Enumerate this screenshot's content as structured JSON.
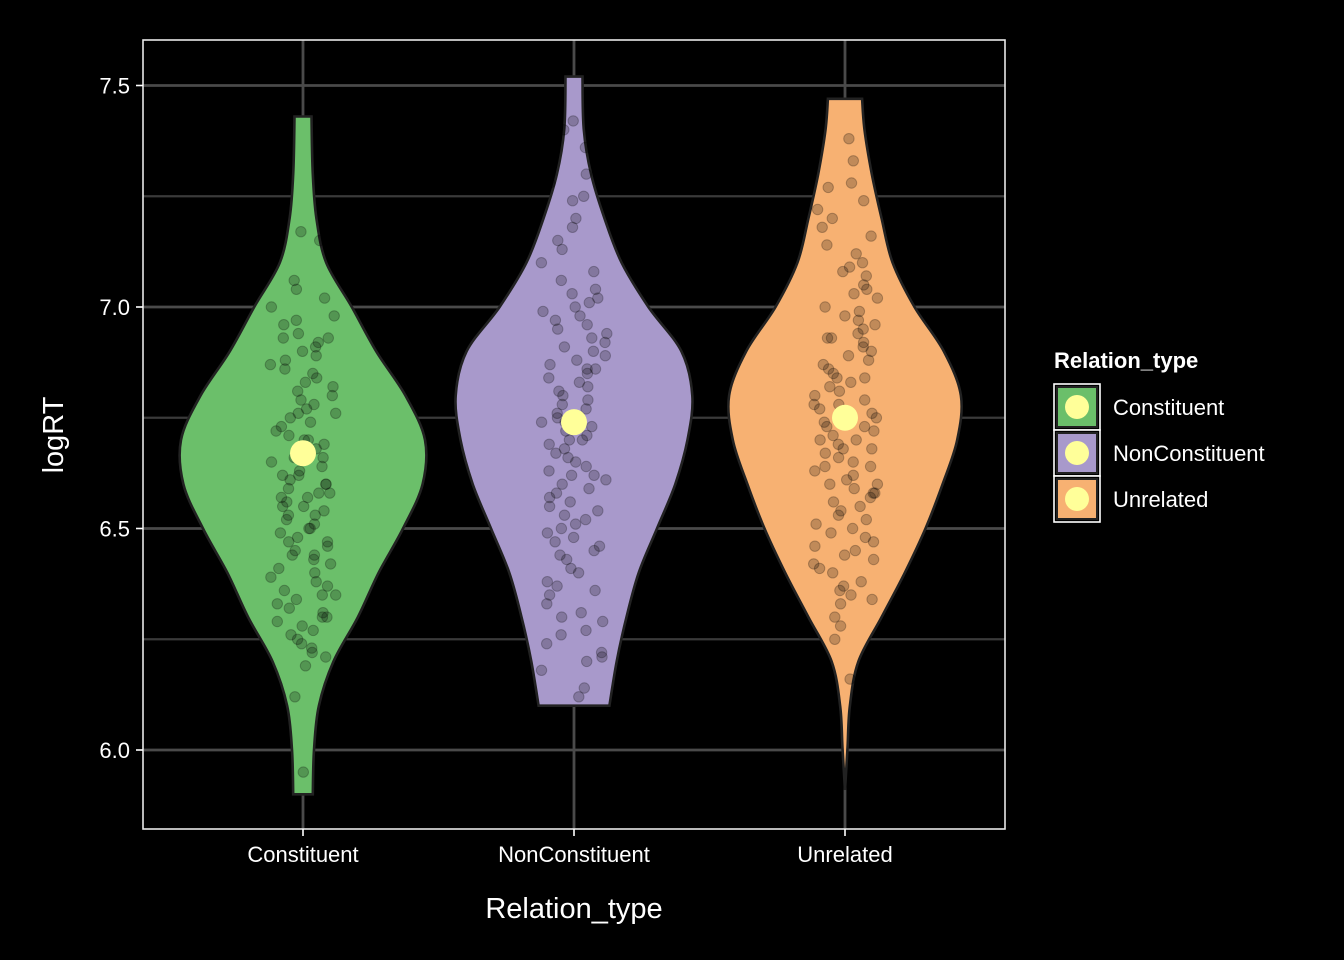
{
  "chart_data": {
    "type": "violin",
    "xlabel": "Relation_type",
    "ylabel": "logRT",
    "categories": [
      "Constituent",
      "NonConstituent",
      "Unrelated"
    ],
    "ylim": [
      5.82,
      7.6
    ],
    "yticks": [
      6.0,
      6.5,
      7.0,
      7.5
    ],
    "ytick_labels": [
      "6.0",
      "6.5",
      "7.0",
      "7.5"
    ],
    "grid": true,
    "background": "#000000",
    "legend": {
      "title": "Relation_type",
      "position": "right",
      "entries": [
        "Constituent",
        "NonConstituent",
        "Unrelated"
      ]
    },
    "mean_color": "#FFFF99",
    "series": [
      {
        "category": "Constituent",
        "color": "#6BBF6A",
        "y_min": 5.9,
        "y_max": 7.43,
        "mean": 6.67,
        "density_profile": [
          [
            5.9,
            0.08
          ],
          [
            6.0,
            0.09
          ],
          [
            6.1,
            0.13
          ],
          [
            6.2,
            0.25
          ],
          [
            6.3,
            0.45
          ],
          [
            6.4,
            0.62
          ],
          [
            6.5,
            0.82
          ],
          [
            6.6,
            0.98
          ],
          [
            6.7,
            1.0
          ],
          [
            6.8,
            0.84
          ],
          [
            6.9,
            0.6
          ],
          [
            7.0,
            0.4
          ],
          [
            7.1,
            0.19
          ],
          [
            7.2,
            0.11
          ],
          [
            7.3,
            0.08
          ],
          [
            7.43,
            0.07
          ]
        ],
        "points": [
          6.27,
          6.61,
          6.23,
          6.35,
          6.4,
          6.51,
          6.73,
          6.93,
          6.84,
          7.02,
          6.58,
          6.44,
          6.3,
          6.55,
          6.7,
          6.88,
          6.96,
          6.64,
          6.47,
          6.21,
          6.33,
          6.79,
          6.92,
          7.06,
          6.53,
          6.66,
          6.42,
          6.37,
          6.81,
          6.76,
          6.69,
          6.57,
          6.49,
          6.26,
          6.12,
          5.95,
          6.98,
          7.17,
          7.15,
          6.86,
          6.62,
          6.46,
          6.54,
          6.75,
          6.83,
          6.6,
          6.38,
          6.29,
          6.5,
          6.72,
          6.91,
          7.04,
          6.68,
          6.56,
          6.45,
          6.34,
          6.25,
          6.8,
          6.94,
          6.65,
          6.52,
          6.41,
          6.78,
          6.87,
          6.71,
          6.59,
          6.48,
          6.36,
          6.31,
          6.24,
          6.19,
          6.6,
          6.74,
          6.89,
          7.0,
          6.77,
          6.63,
          6.55,
          6.43,
          6.32,
          6.28,
          6.82,
          6.93,
          6.7,
          6.58,
          6.5,
          6.39,
          6.22,
          6.85,
          6.97,
          6.66,
          6.53,
          6.47,
          6.35,
          6.76,
          6.9,
          6.62,
          6.57,
          6.44,
          6.3
        ]
      },
      {
        "category": "NonConstituent",
        "color": "#A899CB",
        "y_min": 6.1,
        "y_max": 7.52,
        "mean": 6.74,
        "density_profile": [
          [
            6.1,
            0.29
          ],
          [
            6.2,
            0.35
          ],
          [
            6.3,
            0.43
          ],
          [
            6.4,
            0.53
          ],
          [
            6.5,
            0.68
          ],
          [
            6.6,
            0.83
          ],
          [
            6.7,
            0.93
          ],
          [
            6.8,
            0.97
          ],
          [
            6.9,
            0.88
          ],
          [
            7.0,
            0.61
          ],
          [
            7.1,
            0.39
          ],
          [
            7.2,
            0.25
          ],
          [
            7.3,
            0.14
          ],
          [
            7.4,
            0.08
          ],
          [
            7.52,
            0.07
          ]
        ],
        "points": [
          6.12,
          6.2,
          6.24,
          6.29,
          6.33,
          6.37,
          6.41,
          6.45,
          6.5,
          6.54,
          6.58,
          6.62,
          6.66,
          6.7,
          6.74,
          6.78,
          6.82,
          6.86,
          6.9,
          6.94,
          6.98,
          7.02,
          7.06,
          7.1,
          7.15,
          7.2,
          7.25,
          7.3,
          7.36,
          7.42,
          6.14,
          6.22,
          6.27,
          6.35,
          6.4,
          6.47,
          6.52,
          6.56,
          6.6,
          6.64,
          6.68,
          6.72,
          6.76,
          6.8,
          6.84,
          6.88,
          6.92,
          6.96,
          7.0,
          7.04,
          7.08,
          7.13,
          7.18,
          7.24,
          7.28,
          7.34,
          7.4,
          6.18,
          6.31,
          6.43,
          6.49,
          6.57,
          6.63,
          6.69,
          6.73,
          6.79,
          6.85,
          6.91,
          6.97,
          7.03,
          6.21,
          6.3,
          6.38,
          6.46,
          6.53,
          6.61,
          6.67,
          6.75,
          6.83,
          6.89,
          6.95,
          7.01,
          6.26,
          6.36,
          6.44,
          6.51,
          6.59,
          6.65,
          6.71,
          6.77,
          6.81,
          6.87,
          6.93,
          6.99,
          6.55,
          6.48,
          6.62,
          6.74,
          6.86,
          6.7
        ]
      },
      {
        "category": "Unrelated",
        "color": "#F7B172",
        "y_min": 5.91,
        "y_max": 7.47,
        "mean": 6.75,
        "density_profile": [
          [
            5.91,
            0.0
          ],
          [
            6.0,
            0.02
          ],
          [
            6.1,
            0.04
          ],
          [
            6.2,
            0.11
          ],
          [
            6.3,
            0.3
          ],
          [
            6.4,
            0.49
          ],
          [
            6.5,
            0.66
          ],
          [
            6.6,
            0.8
          ],
          [
            6.7,
            0.92
          ],
          [
            6.8,
            0.95
          ],
          [
            6.9,
            0.81
          ],
          [
            7.0,
            0.57
          ],
          [
            7.1,
            0.39
          ],
          [
            7.2,
            0.3
          ],
          [
            7.3,
            0.22
          ],
          [
            7.4,
            0.16
          ],
          [
            7.47,
            0.14
          ]
        ],
        "points": [
          6.16,
          6.25,
          6.28,
          6.33,
          6.35,
          6.4,
          6.43,
          6.47,
          6.5,
          6.53,
          6.57,
          6.6,
          6.63,
          6.66,
          6.69,
          6.72,
          6.75,
          6.78,
          6.81,
          6.84,
          6.87,
          6.9,
          6.93,
          6.96,
          6.99,
          7.02,
          7.05,
          7.08,
          7.12,
          7.16,
          7.2,
          7.24,
          7.28,
          7.33,
          7.38,
          7.46,
          6.34,
          6.38,
          6.42,
          6.45,
          6.49,
          6.52,
          6.55,
          6.58,
          6.61,
          6.64,
          6.67,
          6.7,
          6.73,
          6.76,
          6.79,
          6.82,
          6.85,
          6.88,
          6.91,
          6.94,
          6.97,
          7.0,
          7.04,
          7.07,
          7.1,
          7.14,
          7.18,
          7.22,
          7.27,
          6.3,
          6.37,
          6.44,
          6.51,
          6.56,
          6.62,
          6.68,
          6.74,
          6.8,
          6.86,
          6.92,
          6.98,
          7.03,
          7.09,
          6.41,
          6.48,
          6.54,
          6.59,
          6.65,
          6.71,
          6.77,
          6.83,
          6.89,
          6.95,
          6.36,
          6.46,
          6.6,
          6.73,
          6.84,
          6.93,
          6.64,
          6.7,
          6.58,
          6.78,
          6.68
        ]
      }
    ]
  }
}
